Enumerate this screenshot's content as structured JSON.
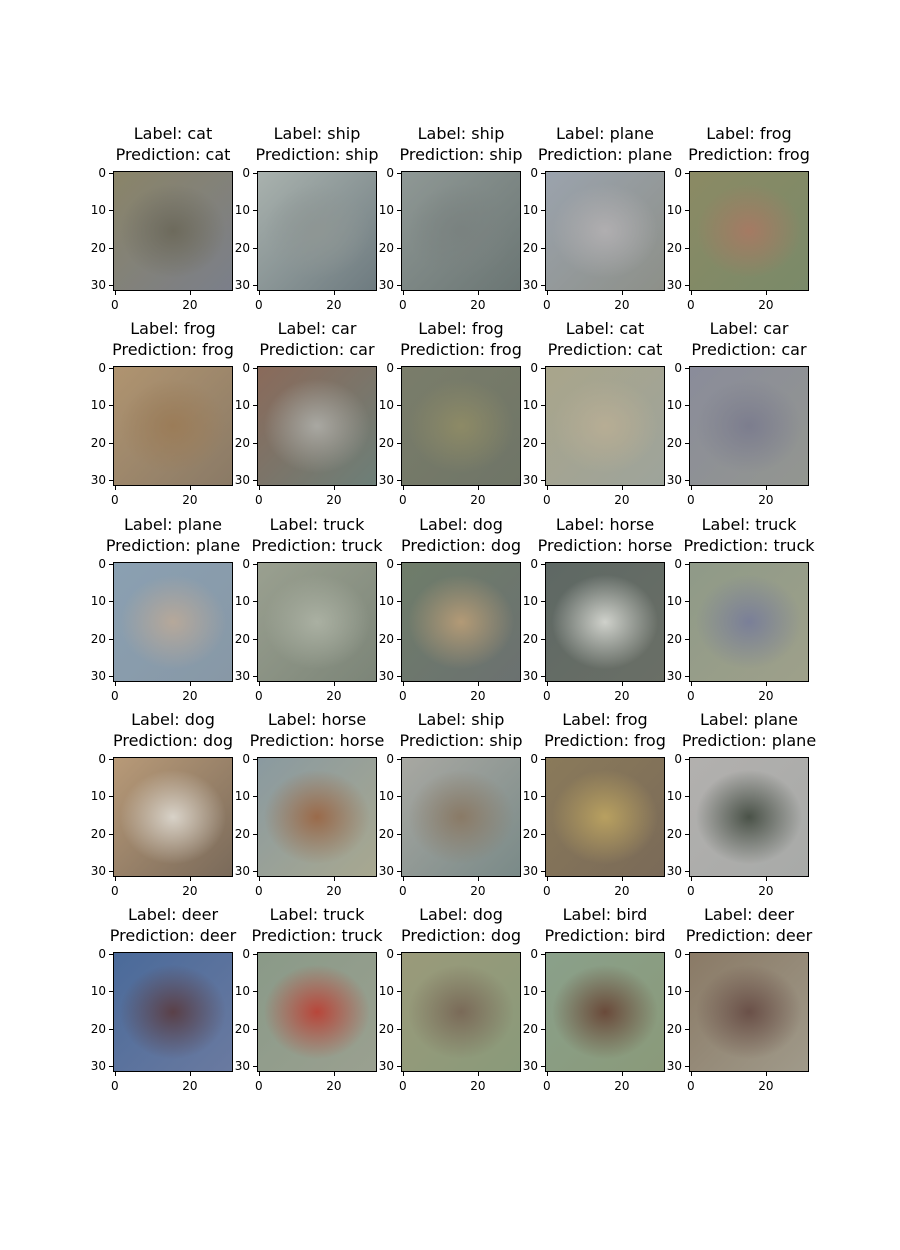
{
  "chart_data": {
    "type": "image_grid",
    "rows": 5,
    "cols": 5,
    "label_prefix": "Label:",
    "prediction_prefix": "Prediction:",
    "x_ticks": [
      "0",
      "20"
    ],
    "y_ticks": [
      "0",
      "10",
      "20",
      "30"
    ],
    "panels": [
      {
        "label": "cat",
        "prediction": "cat",
        "colors": [
          "#8a8468",
          "#6d6a5c",
          "#7b7f8a"
        ]
      },
      {
        "label": "ship",
        "prediction": "ship",
        "colors": [
          "#a9b2ae",
          "#8e9694",
          "#6e7b80"
        ]
      },
      {
        "label": "ship",
        "prediction": "ship",
        "colors": [
          "#8f9895",
          "#7a8280",
          "#6b7674"
        ]
      },
      {
        "label": "plane",
        "prediction": "plane",
        "colors": [
          "#9ba3ad",
          "#b0aeb0",
          "#8d9089"
        ]
      },
      {
        "label": "frog",
        "prediction": "frog",
        "colors": [
          "#8b8a64",
          "#a57a63",
          "#7a8a69"
        ]
      },
      {
        "label": "frog",
        "prediction": "frog",
        "colors": [
          "#b09470",
          "#9b7c58",
          "#8a7a66"
        ]
      },
      {
        "label": "car",
        "prediction": "car",
        "colors": [
          "#8a6a5a",
          "#a9a8a2",
          "#6d7f78"
        ]
      },
      {
        "label": "frog",
        "prediction": "frog",
        "colors": [
          "#7a7d6a",
          "#8d8a66",
          "#6f7567"
        ]
      },
      {
        "label": "cat",
        "prediction": "cat",
        "colors": [
          "#a9a58b",
          "#b7ad94",
          "#9ea49b"
        ]
      },
      {
        "label": "car",
        "prediction": "car",
        "colors": [
          "#8a8c9a",
          "#7c7d8e",
          "#939690"
        ]
      },
      {
        "label": "plane",
        "prediction": "plane",
        "colors": [
          "#8aa0b2",
          "#b6a89a",
          "#8898a6"
        ]
      },
      {
        "label": "truck",
        "prediction": "truck",
        "colors": [
          "#9aa090",
          "#aab0a2",
          "#7c8578"
        ]
      },
      {
        "label": "dog",
        "prediction": "dog",
        "colors": [
          "#6f7d6a",
          "#b39a76",
          "#6b7170"
        ]
      },
      {
        "label": "horse",
        "prediction": "horse",
        "colors": [
          "#5e6864",
          "#cfd1cb",
          "#6a6f66"
        ]
      },
      {
        "label": "truck",
        "prediction": "truck",
        "colors": [
          "#8f9a88",
          "#7a7f98",
          "#9ea08a"
        ]
      },
      {
        "label": "dog",
        "prediction": "dog",
        "colors": [
          "#b89a78",
          "#d8d2c8",
          "#7a6a5a"
        ]
      },
      {
        "label": "horse",
        "prediction": "horse",
        "colors": [
          "#8a9aa0",
          "#9a6a4a",
          "#a8a890"
        ]
      },
      {
        "label": "ship",
        "prediction": "ship",
        "colors": [
          "#a8a8a2",
          "#8a7a66",
          "#7a8a88"
        ]
      },
      {
        "label": "frog",
        "prediction": "frog",
        "colors": [
          "#8a7a5a",
          "#b8a060",
          "#7a6a58"
        ]
      },
      {
        "label": "plane",
        "prediction": "plane",
        "colors": [
          "#b2b0ae",
          "#4a5248",
          "#a8aaa8"
        ]
      },
      {
        "label": "deer",
        "prediction": "deer",
        "colors": [
          "#4a6a9a",
          "#5a4048",
          "#6a7aa0"
        ]
      },
      {
        "label": "truck",
        "prediction": "truck",
        "colors": [
          "#8a9a88",
          "#b8463a",
          "#9aa090"
        ]
      },
      {
        "label": "dog",
        "prediction": "dog",
        "colors": [
          "#9a9a7a",
          "#7a6a58",
          "#8a9a7a"
        ]
      },
      {
        "label": "bird",
        "prediction": "bird",
        "colors": [
          "#8aa08a",
          "#6a4a3a",
          "#8a9a7a"
        ]
      },
      {
        "label": "deer",
        "prediction": "deer",
        "colors": [
          "#8a7a66",
          "#6a5048",
          "#a09a8a"
        ]
      }
    ]
  }
}
